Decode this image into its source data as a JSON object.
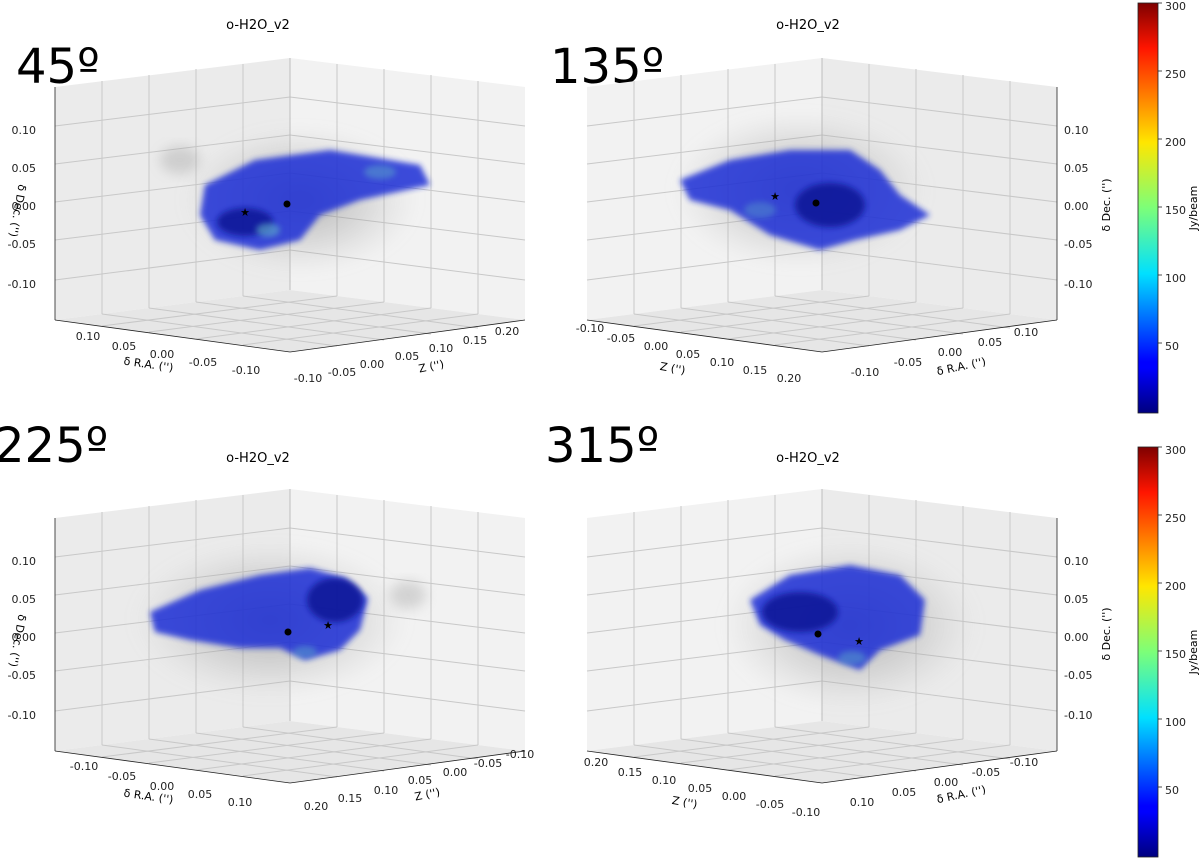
{
  "chart_data": [
    {
      "type": "scatter3d",
      "title": "o-H2O_v2",
      "view_angle_label": "45º",
      "axis_labels": {
        "ra": "δ R.A. ('')",
        "z": "Z ('')",
        "dec": "δ Dec. ('')"
      },
      "ra_ticks": [
        "0.10",
        "0.05",
        "0.00",
        "-0.05",
        "-0.10"
      ],
      "z_ticks": [
        "-0.10",
        "-0.05",
        "0.00",
        "0.05",
        "0.10",
        "0.15",
        "0.20"
      ],
      "dec_ticks": [
        "0.10",
        "0.05",
        "0.00",
        "-0.05",
        "-0.10"
      ],
      "markers": [
        {
          "symbol": "●"
        },
        {
          "symbol": "★"
        }
      ]
    },
    {
      "type": "scatter3d",
      "title": "o-H2O_v2",
      "view_angle_label": "135º",
      "axis_labels": {
        "z": "Z ('')",
        "ra": "δ R.A. ('')",
        "dec": "δ Dec. ('')"
      },
      "z_ticks": [
        "-0.10",
        "-0.05",
        "0.00",
        "0.05",
        "0.10",
        "0.15",
        "0.20"
      ],
      "ra_ticks": [
        "-0.10",
        "-0.05",
        "0.00",
        "0.05",
        "0.10"
      ],
      "dec_ticks": [
        "0.10",
        "0.05",
        "0.00",
        "-0.05",
        "-0.10"
      ],
      "markers": [
        {
          "symbol": "●"
        },
        {
          "symbol": "★"
        }
      ]
    },
    {
      "type": "scatter3d",
      "title": "o-H2O_v2",
      "view_angle_label": "225º",
      "axis_labels": {
        "ra": "δ R.A. ('')",
        "z": "Z ('')",
        "dec": "δ Dec. ('')"
      },
      "ra_ticks": [
        "-0.10",
        "-0.05",
        "0.00",
        "0.05",
        "0.10"
      ],
      "z_ticks": [
        "0.20",
        "0.15",
        "0.10",
        "0.05",
        "0.00",
        "-0.05",
        "-0.10"
      ],
      "dec_ticks": [
        "0.10",
        "0.05",
        "0.00",
        "-0.05",
        "-0.10"
      ],
      "markers": [
        {
          "symbol": "●"
        },
        {
          "symbol": "★"
        }
      ]
    },
    {
      "type": "scatter3d",
      "title": "o-H2O_v2",
      "view_angle_label": "315º",
      "axis_labels": {
        "z": "Z ('')",
        "ra": "δ R.A. ('')",
        "dec": "δ Dec. ('')"
      },
      "z_ticks": [
        "0.20",
        "0.15",
        "0.10",
        "0.05",
        "0.00",
        "-0.05",
        "-0.10"
      ],
      "ra_ticks": [
        "0.10",
        "0.05",
        "0.00",
        "-0.05",
        "-0.10"
      ],
      "dec_ticks": [
        "0.10",
        "0.05",
        "0.00",
        "-0.05",
        "-0.10"
      ],
      "markers": [
        {
          "symbol": "●"
        },
        {
          "symbol": "★"
        }
      ]
    }
  ],
  "colorbars": [
    {
      "label": "Jy/beam",
      "ticks": [
        300,
        250,
        200,
        150,
        100,
        50
      ],
      "range": [
        0,
        300
      ],
      "colormap": "jet"
    },
    {
      "label": "Jy/beam",
      "ticks": [
        300,
        250,
        200,
        150,
        100,
        50
      ],
      "range": [
        0,
        300
      ],
      "colormap": "jet"
    }
  ],
  "colors": {
    "emission": "#1b2fd6",
    "emission_dark": "#0b1496",
    "emission_light": "#5fb0c8",
    "haze": "#8a8a8a",
    "pane": "#ebebeb",
    "grid": "#c8c8c8"
  }
}
